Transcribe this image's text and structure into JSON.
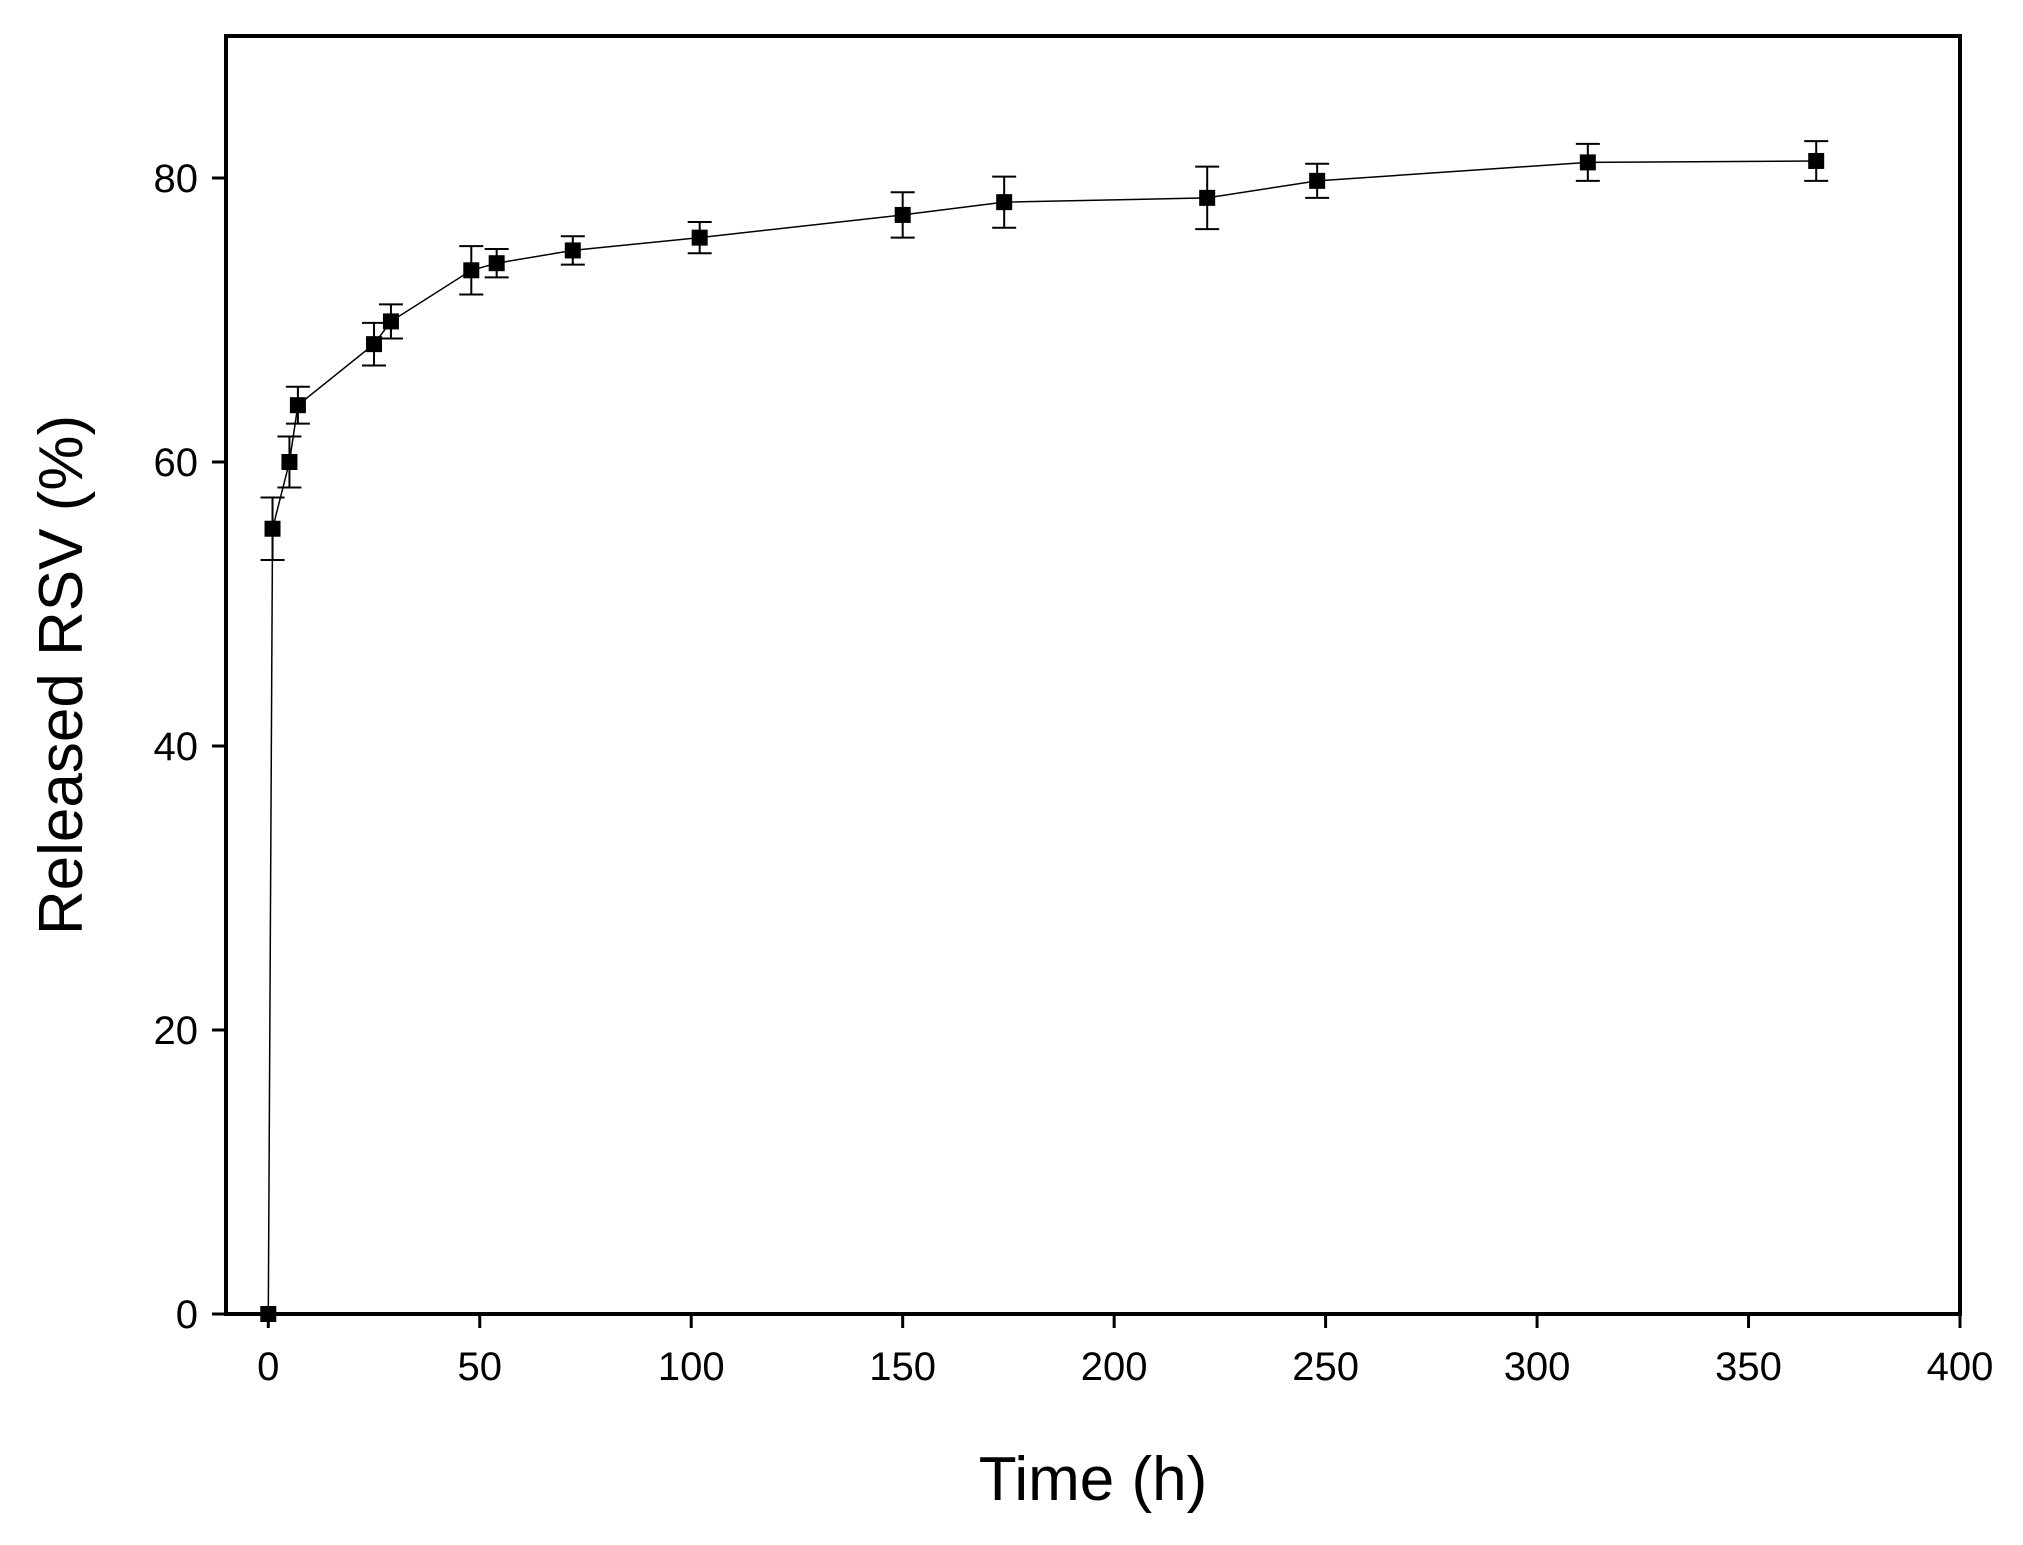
{
  "chart_data": {
    "type": "scatter-line",
    "x_label": "Time (h)",
    "y_label": "Released RSV (%)",
    "x": [
      0,
      1,
      5,
      7,
      25,
      29,
      48,
      54,
      72,
      102,
      150,
      174,
      222,
      248,
      312,
      366
    ],
    "values": [
      0,
      55.3,
      60,
      64,
      68.3,
      69.9,
      73.5,
      74,
      74.9,
      75.8,
      77.4,
      78.3,
      78.6,
      79.8,
      81.1,
      81.2
    ],
    "errors": [
      0,
      2.2,
      1.8,
      1.3,
      1.5,
      1.2,
      1.7,
      1,
      1,
      1.1,
      1.6,
      1.8,
      2.2,
      1.2,
      1.3,
      1.4
    ],
    "color": "#000000",
    "xlim": [
      -10,
      400
    ],
    "xticks": [
      0,
      50,
      100,
      150,
      200,
      250,
      300,
      350,
      400
    ],
    "ylim": [
      0,
      90
    ],
    "yticks": [
      0,
      20,
      40,
      60,
      80
    ]
  }
}
